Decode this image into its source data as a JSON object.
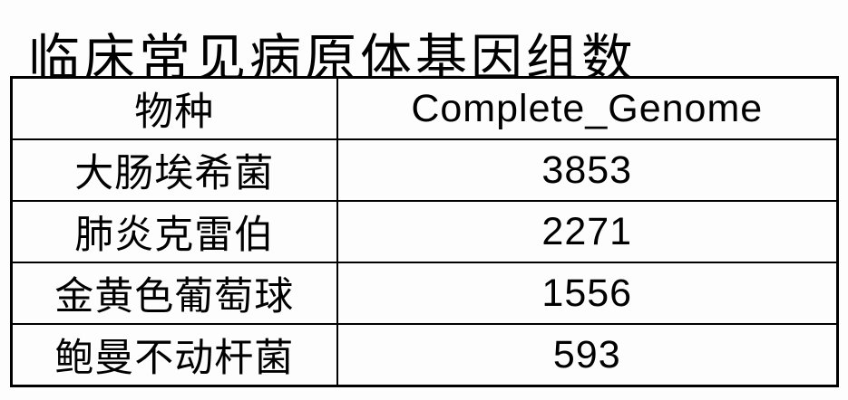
{
  "title": "临床常见病原体基因组数",
  "table": {
    "headers": [
      "物种",
      "Complete_Genome"
    ],
    "rows": [
      {
        "species": "大肠埃希菌",
        "value": "3853"
      },
      {
        "species": "肺炎克雷伯",
        "value": "2271"
      },
      {
        "species": "金黄色葡萄球",
        "value": "1556"
      },
      {
        "species": "鲍曼不动杆菌",
        "value": "593"
      }
    ]
  },
  "chart_data": {
    "type": "table",
    "title": "临床常见病原体基因组数",
    "columns": [
      "物种",
      "Complete_Genome"
    ],
    "rows": [
      [
        "大肠埃希菌",
        3853
      ],
      [
        "肺炎克雷伯",
        2271
      ],
      [
        "金黄色葡萄球",
        1556
      ],
      [
        "鲍曼不动杆菌",
        593
      ]
    ],
    "colors": {
      "text": "#000000",
      "border": "#000000",
      "background": "#fdfdfd"
    }
  }
}
